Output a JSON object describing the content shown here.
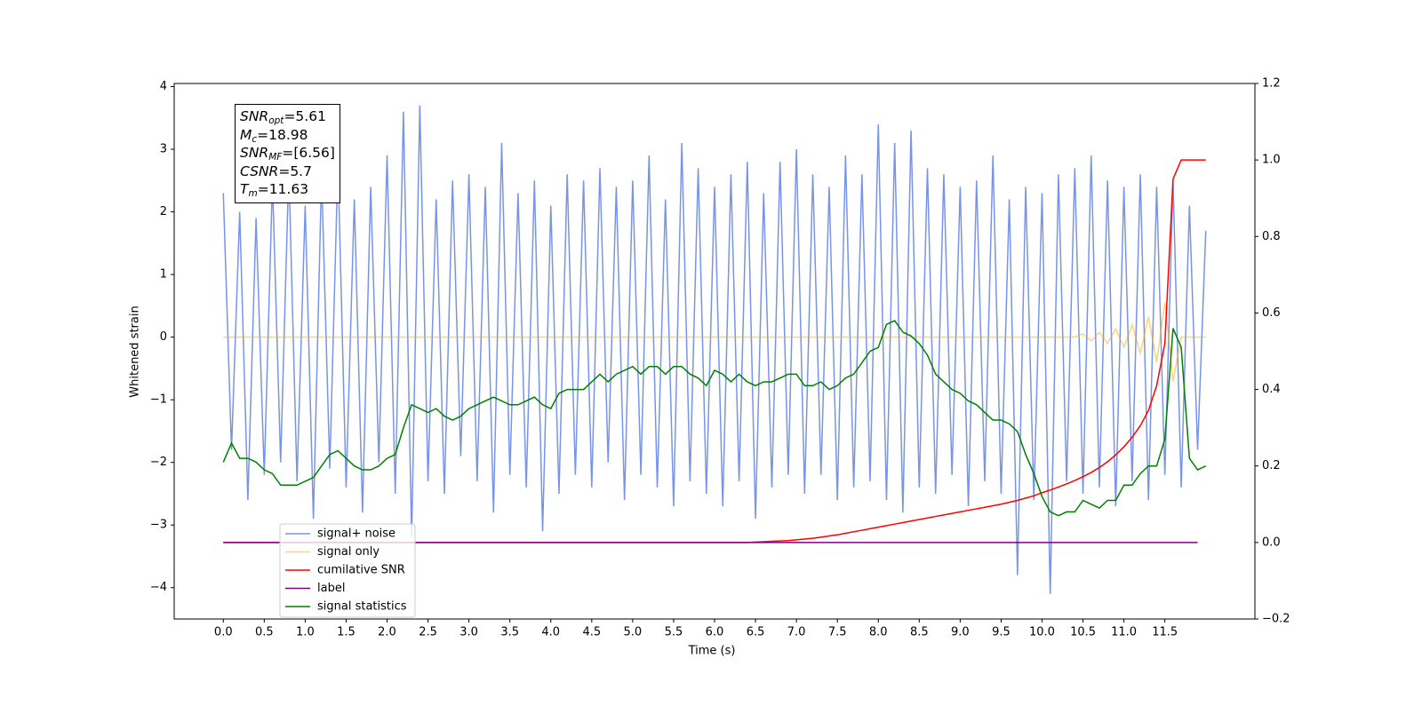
{
  "chart_data": {
    "type": "line",
    "xlabel": "Time (s)",
    "ylabel": "Whitened strain",
    "xlim": [
      -0.6,
      12.6
    ],
    "ylim": [
      -4.5,
      4.05
    ],
    "y2lim": [
      -0.2,
      1.2
    ],
    "xticks": [
      {
        "value": 0,
        "label": "0.0"
      },
      0.5,
      {
        "value": 1,
        "label": "1.0"
      },
      1.5,
      {
        "value": 2,
        "label": "2.0"
      },
      2.5,
      {
        "value": 3,
        "label": "3.0"
      },
      3.5,
      {
        "value": 4,
        "label": "4.0"
      },
      4.5,
      {
        "value": 5,
        "label": "5.0"
      },
      5.5,
      {
        "value": 6,
        "label": "6.0"
      },
      6.5,
      {
        "value": 7,
        "label": "7.0"
      },
      7.5,
      {
        "value": 8,
        "label": "8.0"
      },
      8.5,
      {
        "value": 9,
        "label": "9.0"
      },
      9.5,
      {
        "value": 10,
        "label": "10.0"
      },
      10.5,
      {
        "value": 11,
        "label": "11.0"
      },
      11.5
    ],
    "yticks": [
      {
        "value": -4,
        "label": "−4"
      },
      {
        "value": -3,
        "label": "−3"
      },
      {
        "value": -2,
        "label": "−2"
      },
      {
        "value": -1,
        "label": "−1"
      },
      0,
      1,
      2,
      3,
      4
    ],
    "y2ticks": [
      {
        "value": -0.2,
        "label": "−0.2"
      },
      {
        "value": 0,
        "label": "0.0"
      },
      0.2,
      0.4,
      0.6,
      0.8,
      {
        "value": 1,
        "label": "1.0"
      },
      1.2
    ],
    "legend": "lower left",
    "stats_box": [
      {
        "symbol": "SNR",
        "subscript": "opt",
        "text": "=5.61"
      },
      {
        "symbol": "M",
        "subscript": "c",
        "text": "=18.98"
      },
      {
        "symbol": "SNR",
        "subscript": "MF",
        "text": "=[6.56]"
      },
      {
        "symbol": "CSNR",
        "subscript": null,
        "text": "=5.7"
      },
      {
        "symbol": "T",
        "subscript": "m",
        "text": "=11.63"
      }
    ],
    "x": [
      0,
      0.1,
      0.2,
      0.3,
      0.4,
      0.5,
      0.6,
      0.7,
      0.8,
      0.9,
      1,
      1.1,
      1.2,
      1.3,
      1.4,
      1.5,
      1.6,
      1.7,
      1.8,
      1.9,
      2,
      2.1,
      2.2,
      2.3,
      2.4,
      2.5,
      2.6,
      2.7,
      2.8,
      2.9,
      3,
      3.1,
      3.2,
      3.3,
      3.4,
      3.5,
      3.6,
      3.7,
      3.8,
      3.9,
      4,
      4.1,
      4.2,
      4.3,
      4.4,
      4.5,
      4.6,
      4.7,
      4.8,
      4.9,
      5,
      5.1,
      5.2,
      5.3,
      5.4,
      5.5,
      5.6,
      5.7,
      5.8,
      5.9,
      6,
      6.1,
      6.2,
      6.3,
      6.4,
      6.5,
      6.6,
      6.7,
      6.8,
      6.9,
      7,
      7.1,
      7.2,
      7.3,
      7.4,
      7.5,
      7.6,
      7.7,
      7.8,
      7.9,
      8,
      8.1,
      8.2,
      8.3,
      8.4,
      8.5,
      8.6,
      8.7,
      8.8,
      8.9,
      9,
      9.1,
      9.2,
      9.3,
      9.4,
      9.5,
      9.6,
      9.7,
      9.8,
      9.9,
      10,
      10.1,
      10.2,
      10.3,
      10.4,
      10.5,
      10.6,
      10.7,
      10.8,
      10.9,
      11,
      11.1,
      11.2,
      11.3,
      11.4,
      11.5,
      11.6,
      11.7,
      11.8,
      11.9,
      12
    ],
    "series": [
      {
        "name": "signal+ noise",
        "color": "#7894e8",
        "axis": "y",
        "values": [
          2.3,
          -1.8,
          2.0,
          -2.6,
          1.9,
          -2.2,
          2.5,
          -2.0,
          2.7,
          -2.3,
          2.1,
          -2.9,
          2.6,
          -2.1,
          2.8,
          -2.4,
          2.2,
          -2.8,
          2.4,
          -2.0,
          2.9,
          -2.5,
          3.6,
          -3.2,
          3.7,
          -2.3,
          2.2,
          -2.5,
          2.5,
          -1.9,
          2.6,
          -2.3,
          2.4,
          -2.8,
          3.1,
          -2.2,
          2.3,
          -2.4,
          2.5,
          -3.1,
          2.1,
          -2.5,
          2.6,
          -2.2,
          2.5,
          -2.4,
          2.7,
          -2.0,
          2.4,
          -2.6,
          2.5,
          -2.2,
          2.9,
          -2.4,
          2.2,
          -2.7,
          3.1,
          -2.3,
          2.7,
          -2.5,
          2.4,
          -2.7,
          2.6,
          -2.3,
          2.8,
          -2.9,
          2.3,
          -2.4,
          2.8,
          -2.2,
          3.0,
          -2.5,
          2.6,
          -2.2,
          2.4,
          -2.6,
          2.9,
          -2.4,
          2.6,
          -2.3,
          3.4,
          -2.6,
          3.1,
          -2.8,
          3.3,
          -2.4,
          2.7,
          -2.5,
          2.6,
          -2.2,
          2.4,
          -2.7,
          2.5,
          -2.3,
          2.9,
          -2.5,
          2.2,
          -3.8,
          2.4,
          -2.6,
          2.3,
          -4.1,
          2.6,
          -2.3,
          2.7,
          -2.5,
          2.9,
          -2.4,
          2.5,
          -2.7,
          2.4,
          -2.3,
          2.6,
          -2.6,
          2.4,
          -2.2,
          2.5,
          -2.4,
          2.1,
          -1.8,
          1.7
        ]
      },
      {
        "name": "signal only",
        "color": "#ffa500",
        "axis": "y",
        "values": [
          0,
          0,
          0,
          0,
          0,
          0,
          0,
          0,
          0,
          0,
          0,
          0,
          0,
          0,
          0,
          0,
          0,
          0,
          0,
          0,
          0,
          0,
          0,
          0,
          0,
          0,
          0,
          0,
          0,
          0,
          0,
          0,
          0,
          0,
          0,
          0,
          0,
          0,
          0,
          0,
          0,
          0,
          0,
          0,
          0,
          0,
          0,
          0,
          0,
          0,
          0,
          0,
          0,
          0,
          0,
          0,
          0,
          0,
          0,
          0,
          0,
          0,
          0,
          0,
          0,
          0,
          0,
          0,
          0,
          0,
          0,
          0,
          0,
          0,
          0,
          0,
          0,
          0,
          0,
          0,
          0,
          0,
          0,
          0,
          0,
          0,
          0,
          0,
          0,
          0,
          0,
          0,
          0,
          0,
          0,
          0,
          0,
          0,
          0,
          0,
          0,
          0,
          0,
          0,
          0,
          0.05,
          -0.06,
          0.08,
          -0.1,
          0.13,
          -0.16,
          0.2,
          -0.25,
          0.32,
          -0.4,
          0.55,
          -0.7,
          0,
          0,
          0,
          0
        ]
      },
      {
        "name": "cumilative SNR",
        "color": "#ff0000",
        "axis": "y2",
        "values": [
          0,
          0,
          0,
          0,
          0,
          0,
          0,
          0,
          0,
          0,
          0,
          0,
          0,
          0,
          0,
          0,
          0,
          0,
          0,
          0,
          0,
          0,
          0,
          0,
          0,
          0,
          0,
          0,
          0,
          0,
          0,
          0,
          0,
          0,
          0,
          0,
          0,
          0,
          0,
          0,
          0,
          0,
          0,
          0,
          0,
          0,
          0,
          0,
          0,
          0,
          0,
          0,
          0,
          0,
          0,
          0,
          0,
          0,
          0,
          0,
          0,
          0,
          0,
          0,
          0,
          0.001,
          0.002,
          0.003,
          0.004,
          0.005,
          0.007,
          0.009,
          0.011,
          0.014,
          0.017,
          0.02,
          0.024,
          0.028,
          0.032,
          0.036,
          0.04,
          0.044,
          0.048,
          0.052,
          0.056,
          0.06,
          0.064,
          0.068,
          0.072,
          0.076,
          0.08,
          0.084,
          0.088,
          0.092,
          0.096,
          0.1,
          0.105,
          0.11,
          0.116,
          0.122,
          0.13,
          0.137,
          0.145,
          0.153,
          0.162,
          0.172,
          0.183,
          0.196,
          0.211,
          0.229,
          0.25,
          0.275,
          0.305,
          0.345,
          0.41,
          0.52,
          0.95,
          1,
          1,
          1,
          1
        ]
      },
      {
        "name": "label",
        "color": "#800080",
        "axis": "y2",
        "values": [
          0,
          0,
          0,
          0,
          0,
          0,
          0,
          0,
          0,
          0,
          0,
          0,
          0,
          0,
          0,
          0,
          0,
          0,
          0,
          0,
          0,
          0,
          0,
          0,
          0,
          0,
          0,
          0,
          0,
          0,
          0,
          0,
          0,
          0,
          0,
          0,
          0,
          0,
          0,
          0,
          0,
          0,
          0,
          0,
          0,
          0,
          0,
          0,
          0,
          0,
          0,
          0,
          0,
          0,
          0,
          0,
          0,
          0,
          0,
          0,
          0,
          0,
          0,
          0,
          0,
          0,
          0,
          0,
          0,
          0,
          0,
          0,
          0,
          0,
          0,
          0,
          0,
          0,
          0,
          0,
          0,
          0,
          0,
          0,
          0,
          0,
          0,
          0,
          0,
          0,
          0,
          0,
          0,
          0,
          0,
          0,
          0,
          0,
          0,
          0,
          0,
          0,
          0,
          0,
          0,
          0,
          0,
          0,
          0,
          0,
          0,
          0,
          0,
          0,
          0,
          0,
          0,
          0,
          0,
          0,
          null
        ]
      },
      {
        "name": "signal statistics",
        "color": "#008000",
        "axis": "y2",
        "values": [
          0.21,
          0.26,
          0.22,
          0.22,
          0.21,
          0.19,
          0.18,
          0.15,
          0.15,
          0.15,
          0.16,
          0.17,
          0.2,
          0.23,
          0.24,
          0.22,
          0.2,
          0.19,
          0.19,
          0.2,
          0.22,
          0.23,
          0.3,
          0.36,
          0.35,
          0.34,
          0.35,
          0.33,
          0.32,
          0.33,
          0.35,
          0.36,
          0.37,
          0.38,
          0.37,
          0.36,
          0.36,
          0.37,
          0.38,
          0.36,
          0.35,
          0.39,
          0.4,
          0.4,
          0.4,
          0.42,
          0.44,
          0.42,
          0.44,
          0.45,
          0.46,
          0.44,
          0.46,
          0.46,
          0.44,
          0.46,
          0.46,
          0.44,
          0.43,
          0.41,
          0.45,
          0.44,
          0.42,
          0.44,
          0.42,
          0.41,
          0.42,
          0.42,
          0.43,
          0.44,
          0.44,
          0.41,
          0.41,
          0.42,
          0.4,
          0.41,
          0.43,
          0.44,
          0.47,
          0.5,
          0.51,
          0.57,
          0.58,
          0.55,
          0.54,
          0.52,
          0.49,
          0.44,
          0.42,
          0.4,
          0.39,
          0.37,
          0.36,
          0.34,
          0.32,
          0.32,
          0.31,
          0.29,
          0.23,
          0.18,
          0.12,
          0.08,
          0.07,
          0.08,
          0.08,
          0.11,
          0.1,
          0.09,
          0.11,
          0.11,
          0.15,
          0.15,
          0.18,
          0.2,
          0.2,
          0.27,
          0.56,
          0.51,
          0.22,
          0.19,
          0.2
        ]
      }
    ]
  }
}
